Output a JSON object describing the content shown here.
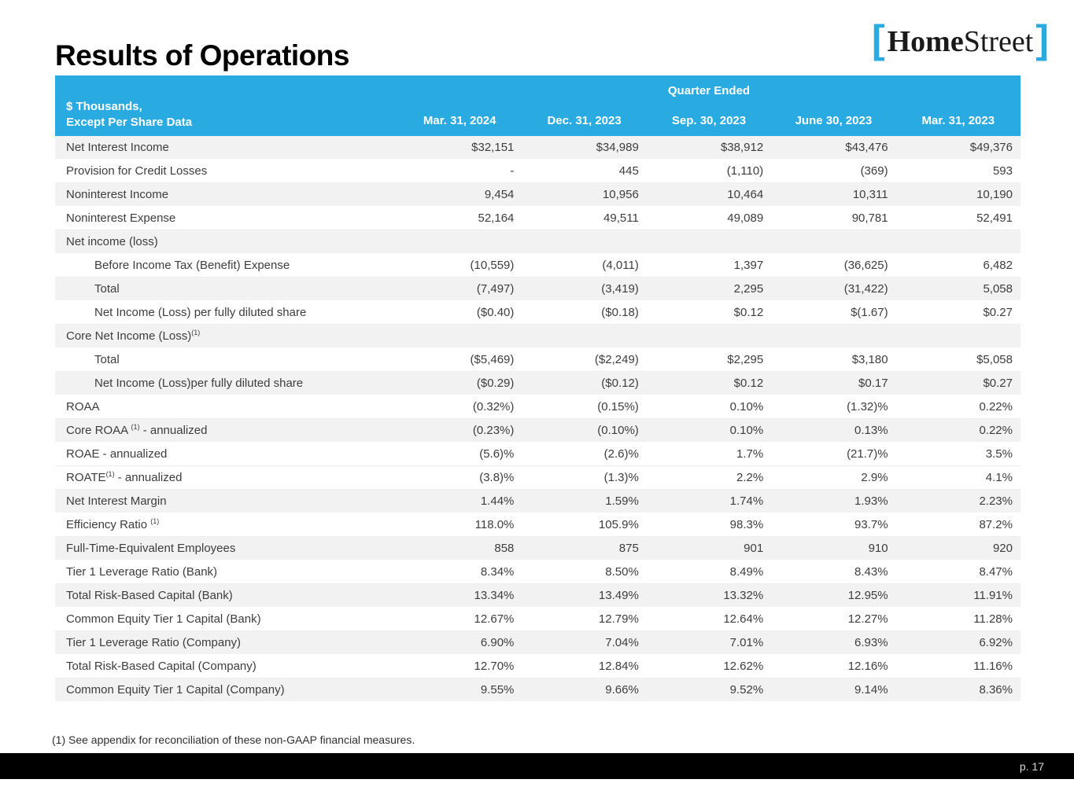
{
  "slide": {
    "title": "Results of Operations",
    "logo": {
      "bracket_left": "[",
      "home": "Home",
      "street": "Street",
      "bracket_right": "]"
    },
    "footnote": "(1) See appendix for reconciliation of these non-GAAP financial measures.",
    "page_number": "p. 17"
  },
  "colors": {
    "accent_cyan": "#29ABE2",
    "row_shade": "#F2F2F2",
    "footer_bar": "#000000",
    "body_text": "#3D3D3D"
  },
  "table": {
    "header": {
      "group_label": "Quarter Ended",
      "row_label_line1": "$ Thousands,",
      "row_label_line2": "Except Per Share Data",
      "columns": [
        "Mar. 31, 2024",
        "Dec. 31, 2023",
        "Sep. 30, 2023",
        "June 30, 2023",
        "Mar. 31, 2023"
      ]
    },
    "rows": [
      {
        "label": "Net Interest Income",
        "sup": "",
        "label_post": "",
        "indent": false,
        "shaded": true,
        "values": [
          "$32,151",
          "$34,989",
          "$38,912",
          "$43,476",
          "$49,376"
        ]
      },
      {
        "label": "Provision for Credit Losses",
        "sup": "",
        "label_post": "",
        "indent": false,
        "shaded": false,
        "values": [
          "-",
          "445",
          "(1,110)",
          "(369)",
          "593"
        ]
      },
      {
        "label": "Noninterest Income",
        "sup": "",
        "label_post": "",
        "indent": false,
        "shaded": true,
        "values": [
          "9,454",
          "10,956",
          "10,464",
          "10,311",
          "10,190"
        ]
      },
      {
        "label": "Noninterest Expense",
        "sup": "",
        "label_post": "",
        "indent": false,
        "shaded": false,
        "values": [
          "52,164",
          "49,511",
          "49,089",
          "90,781",
          "52,491"
        ]
      },
      {
        "label": "Net income (loss)",
        "sup": "",
        "label_post": "",
        "indent": false,
        "shaded": true,
        "values": [
          "",
          "",
          "",
          "",
          ""
        ]
      },
      {
        "label": "Before Income Tax (Benefit) Expense",
        "sup": "",
        "label_post": "",
        "indent": true,
        "shaded": false,
        "values": [
          "(10,559)",
          "(4,011)",
          "1,397",
          "(36,625)",
          "6,482"
        ]
      },
      {
        "label": "Total",
        "sup": "",
        "label_post": "",
        "indent": true,
        "shaded": true,
        "values": [
          "(7,497)",
          "(3,419)",
          "2,295",
          "(31,422)",
          "5,058"
        ]
      },
      {
        "label": "Net Income (Loss) per fully diluted share",
        "sup": "",
        "label_post": "",
        "indent": true,
        "shaded": false,
        "values": [
          "($0.40)",
          "($0.18)",
          "$0.12",
          "$(1.67)",
          "$0.27"
        ]
      },
      {
        "label": "Core Net Income (Loss)",
        "sup": "(1)",
        "label_post": "",
        "indent": false,
        "shaded": true,
        "values": [
          "",
          "",
          "",
          "",
          ""
        ]
      },
      {
        "label": "Total",
        "sup": "",
        "label_post": "",
        "indent": true,
        "shaded": false,
        "values": [
          "($5,469)",
          "($2,249)",
          "$2,295",
          "$3,180",
          "$5,058"
        ]
      },
      {
        "label": "Net Income (Loss)per fully diluted share",
        "sup": "",
        "label_post": "",
        "indent": true,
        "shaded": true,
        "values": [
          "($0.29)",
          "($0.12)",
          "$0.12",
          "$0.17",
          "$0.27"
        ]
      },
      {
        "label": "ROAA",
        "sup": "",
        "label_post": "",
        "indent": false,
        "shaded": false,
        "values": [
          "(0.32%)",
          "(0.15%)",
          "0.10%",
          "(1.32)%",
          "0.22%"
        ]
      },
      {
        "label": "Core ROAA ",
        "sup": "(1)",
        "label_post": " - annualized",
        "indent": false,
        "shaded": true,
        "values": [
          "(0.23%)",
          "(0.10%)",
          "0.10%",
          "0.13%",
          "0.22%"
        ]
      },
      {
        "label": "ROAE - annualized",
        "sup": "",
        "label_post": "",
        "indent": false,
        "shaded": false,
        "values": [
          "(5.6)%",
          "(2.6)%",
          "1.7%",
          "(21.7)%",
          "3.5%"
        ]
      },
      {
        "label": "ROATE",
        "sup": "(1)",
        "label_post": " - annualized",
        "indent": false,
        "shaded": false,
        "values": [
          "(3.8)%",
          "(1.3)%",
          "2.2%",
          "2.9%",
          "4.1%"
        ]
      },
      {
        "label": "Net Interest Margin",
        "sup": "",
        "label_post": "",
        "indent": false,
        "shaded": true,
        "values": [
          "1.44%",
          "1.59%",
          "1.74%",
          "1.93%",
          "2.23%"
        ]
      },
      {
        "label": "Efficiency Ratio ",
        "sup": "(1)",
        "label_post": "",
        "indent": false,
        "shaded": false,
        "values": [
          "118.0%",
          "105.9%",
          "98.3%",
          "93.7%",
          "87.2%"
        ]
      },
      {
        "label": "Full-Time-Equivalent Employees",
        "sup": "",
        "label_post": "",
        "indent": false,
        "shaded": true,
        "values": [
          "858",
          "875",
          "901",
          "910",
          "920"
        ]
      },
      {
        "label": "Tier 1 Leverage Ratio (Bank)",
        "sup": "",
        "label_post": "",
        "indent": false,
        "shaded": false,
        "values": [
          "8.34%",
          "8.50%",
          "8.49%",
          "8.43%",
          "8.47%"
        ]
      },
      {
        "label": "Total Risk-Based Capital (Bank)",
        "sup": "",
        "label_post": "",
        "indent": false,
        "shaded": true,
        "values": [
          "13.34%",
          "13.49%",
          "13.32%",
          "12.95%",
          "11.91%"
        ]
      },
      {
        "label": "Common Equity Tier 1 Capital (Bank)",
        "sup": "",
        "label_post": "",
        "indent": false,
        "shaded": false,
        "values": [
          "12.67%",
          "12.79%",
          "12.64%",
          "12.27%",
          "11.28%"
        ]
      },
      {
        "label": "Tier 1 Leverage Ratio (Company)",
        "sup": "",
        "label_post": "",
        "indent": false,
        "shaded": true,
        "values": [
          "6.90%",
          "7.04%",
          "7.01%",
          "6.93%",
          "6.92%"
        ]
      },
      {
        "label": "Total Risk-Based Capital (Company)",
        "sup": "",
        "label_post": "",
        "indent": false,
        "shaded": false,
        "values": [
          "12.70%",
          "12.84%",
          "12.62%",
          "12.16%",
          "11.16%"
        ]
      },
      {
        "label": "Common Equity Tier 1 Capital (Company)",
        "sup": "",
        "label_post": "",
        "indent": false,
        "shaded": true,
        "values": [
          "9.55%",
          "9.66%",
          "9.52%",
          "9.14%",
          "8.36%"
        ]
      }
    ]
  }
}
